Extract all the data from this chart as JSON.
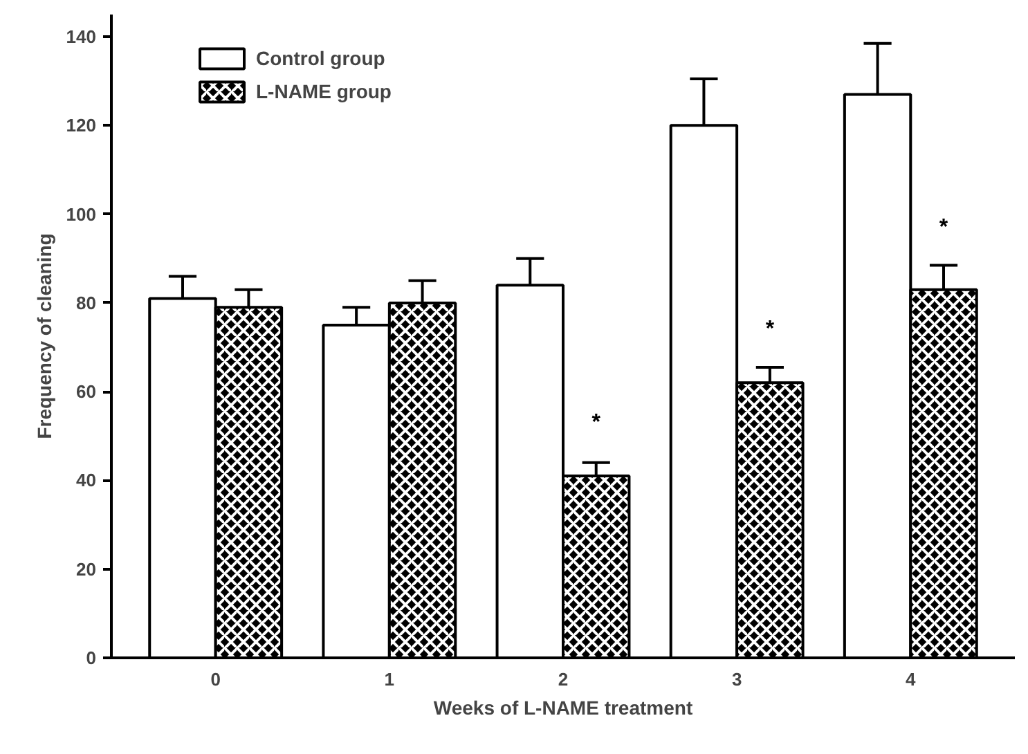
{
  "chart_data": {
    "type": "bar",
    "xlabel": "Weeks of L-NAME treatment",
    "ylabel": "Frequency of cleaning",
    "categories": [
      "0",
      "1",
      "2",
      "3",
      "4"
    ],
    "series": [
      {
        "name": "Control group",
        "color": "#ffffff",
        "values": [
          81,
          75,
          84,
          120,
          127
        ],
        "errors": [
          [
            81,
            86
          ],
          [
            75,
            79
          ],
          [
            84,
            90
          ],
          [
            120,
            130.5
          ],
          [
            127,
            138.5
          ]
        ]
      },
      {
        "name": "L-NAME group",
        "color": "#000000",
        "values": [
          79,
          80,
          41,
          62,
          83
        ],
        "errors": [
          [
            79,
            83
          ],
          [
            80,
            85
          ],
          [
            41,
            44
          ],
          [
            62,
            65.5
          ],
          [
            83,
            88.5
          ]
        ]
      }
    ],
    "annotations": [
      {
        "text": "*",
        "x": "2",
        "y": 53
      },
      {
        "text": "*",
        "x": "3",
        "y": 74
      },
      {
        "text": "*",
        "x": "4",
        "y": 97
      }
    ],
    "ylim": [
      0,
      145
    ],
    "yticks": [
      0,
      20,
      40,
      60,
      80,
      100,
      120,
      140
    ],
    "grid": false,
    "legend": "top left"
  }
}
